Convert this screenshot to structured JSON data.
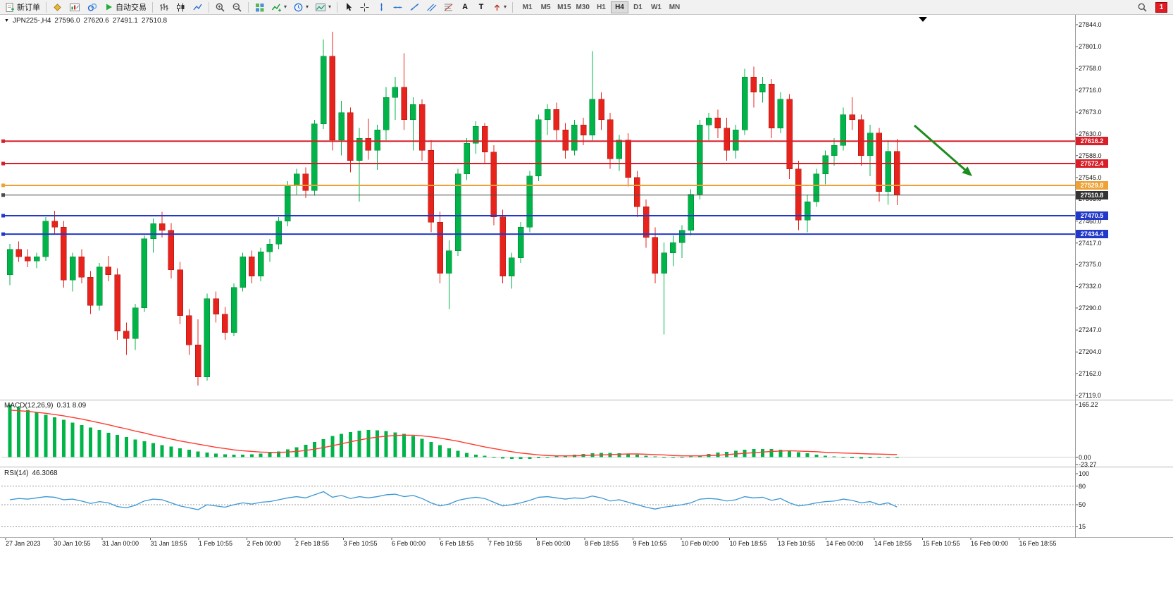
{
  "toolbar": {
    "new_order": "新订单",
    "auto_trading": "自动交易",
    "letters": {
      "text_tool": "A",
      "label_tool": "T"
    },
    "timeframes": [
      "M1",
      "M5",
      "M15",
      "M30",
      "H1",
      "H4",
      "D1",
      "W1",
      "MN"
    ],
    "active_timeframe": "H4",
    "notification_count": "1"
  },
  "chart": {
    "dropdown_marker": "▼",
    "symbol_period": "JPN225-,H4",
    "open": "27596.0",
    "high": "27620.6",
    "low": "27491.1",
    "close": "27510.8",
    "macd_label": "MACD(12,26,9)",
    "macd_values": "0.31 8.09",
    "rsi_label": "RSI(14)",
    "rsi_value": "46.3068"
  },
  "chart_data": [
    {
      "type": "candlestick",
      "symbol": "JPN225-",
      "timeframe": "H4",
      "ohlc_current": {
        "open": 27596.0,
        "high": 27620.6,
        "low": 27491.1,
        "close": 27510.8
      },
      "up_color": "#00b44a",
      "down_color": "#e8231c",
      "price_axis": {
        "min": 27119.0,
        "max": 27844.0,
        "ticks": [
          "27844.0",
          "27801.0",
          "27758.0",
          "27716.0",
          "27673.0",
          "27630.0",
          "27588.0",
          "27545.0",
          "27503.0",
          "27460.0",
          "27417.0",
          "27375.0",
          "27332.0",
          "27290.0",
          "27247.0",
          "27204.0",
          "27162.0",
          "27119.0"
        ]
      },
      "time_labels": [
        "27 Jan 2023",
        "30 Jan 10:55",
        "31 Jan 00:00",
        "31 Jan 18:55",
        "1 Feb 10:55",
        "2 Feb 00:00",
        "2 Feb 18:55",
        "3 Feb 10:55",
        "6 Feb 00:00",
        "6 Feb 18:55",
        "7 Feb 10:55",
        "8 Feb 00:00",
        "8 Feb 18:55",
        "9 Feb 10:55",
        "10 Feb 00:00",
        "10 Feb 18:55",
        "13 Feb 10:55",
        "14 Feb 00:00",
        "14 Feb 18:55",
        "15 Feb 10:55",
        "16 Feb 00:00",
        "16 Feb 18:55"
      ],
      "hlines": [
        {
          "price": 27616.2,
          "label": "27616.2",
          "color": "#d81e28",
          "width": 2
        },
        {
          "price": 27572.4,
          "label": "27572.4",
          "color": "#d81e28",
          "width": 2
        },
        {
          "price": 27529.8,
          "label": "27529.8",
          "color": "#eea236",
          "width": 2
        },
        {
          "price": 27510.8,
          "label": "27510.8",
          "color": "#4a4a4a",
          "width": 1,
          "badge": "#333333"
        },
        {
          "price": 27470.5,
          "label": "27470.5",
          "color": "#2238c8",
          "width": 2
        },
        {
          "price": 27434.4,
          "label": "27434.4",
          "color": "#2238c8",
          "width": 2
        }
      ],
      "annotation": {
        "type": "arrow-down-right",
        "color": "#1e8c1e"
      },
      "candles": [
        [
          27355,
          27415,
          27335,
          27405
        ],
        [
          27405,
          27420,
          27380,
          27390
        ],
        [
          27390,
          27405,
          27370,
          27382
        ],
        [
          27382,
          27398,
          27368,
          27390
        ],
        [
          27390,
          27468,
          27382,
          27460
        ],
        [
          27460,
          27480,
          27435,
          27448
        ],
        [
          27448,
          27460,
          27330,
          27345
        ],
        [
          27345,
          27398,
          27322,
          27390
        ],
        [
          27390,
          27405,
          27338,
          27350
        ],
        [
          27350,
          27362,
          27278,
          27295
        ],
        [
          27295,
          27378,
          27285,
          27370
        ],
        [
          27370,
          27392,
          27342,
          27355
        ],
        [
          27355,
          27368,
          27228,
          27245
        ],
        [
          27245,
          27262,
          27198,
          27230
        ],
        [
          27230,
          27298,
          27208,
          27290
        ],
        [
          27290,
          27432,
          27282,
          27425
        ],
        [
          27425,
          27465,
          27398,
          27455
        ],
        [
          27455,
          27478,
          27428,
          27442
        ],
        [
          27442,
          27456,
          27348,
          27365
        ],
        [
          27365,
          27380,
          27258,
          27275
        ],
        [
          27275,
          27288,
          27198,
          27218
        ],
        [
          27218,
          27268,
          27138,
          27155
        ],
        [
          27155,
          27318,
          27148,
          27308
        ],
        [
          27308,
          27322,
          27262,
          27278
        ],
        [
          27278,
          27292,
          27228,
          27242
        ],
        [
          27242,
          27338,
          27235,
          27330
        ],
        [
          27330,
          27398,
          27322,
          27390
        ],
        [
          27390,
          27402,
          27338,
          27352
        ],
        [
          27352,
          27408,
          27342,
          27400
        ],
        [
          27400,
          27425,
          27380,
          27415
        ],
        [
          27415,
          27468,
          27405,
          27460
        ],
        [
          27460,
          27538,
          27450,
          27530
        ],
        [
          27530,
          27562,
          27512,
          27552
        ],
        [
          27552,
          27565,
          27505,
          27520
        ],
        [
          27520,
          27658,
          27510,
          27650
        ],
        [
          27650,
          27815,
          27640,
          27782
        ],
        [
          27782,
          27830,
          27598,
          27618
        ],
        [
          27618,
          27695,
          27588,
          27672
        ],
        [
          27672,
          27682,
          27555,
          27578
        ],
        [
          27578,
          27642,
          27498,
          27622
        ],
        [
          27622,
          27660,
          27580,
          27598
        ],
        [
          27598,
          27648,
          27560,
          27638
        ],
        [
          27638,
          27722,
          27618,
          27702
        ],
        [
          27702,
          27742,
          27658,
          27722
        ],
        [
          27722,
          27788,
          27638,
          27658
        ],
        [
          27658,
          27702,
          27598,
          27688
        ],
        [
          27688,
          27698,
          27578,
          27598
        ],
        [
          27598,
          27618,
          27438,
          27458
        ],
        [
          27458,
          27478,
          27338,
          27358
        ],
        [
          27358,
          27422,
          27288,
          27402
        ],
        [
          27402,
          27562,
          27392,
          27552
        ],
        [
          27552,
          27622,
          27540,
          27612
        ],
        [
          27612,
          27655,
          27592,
          27645
        ],
        [
          27645,
          27652,
          27572,
          27595
        ],
        [
          27595,
          27608,
          27452,
          27468
        ],
        [
          27468,
          27482,
          27338,
          27352
        ],
        [
          27352,
          27398,
          27328,
          27388
        ],
        [
          27388,
          27458,
          27378,
          27448
        ],
        [
          27448,
          27558,
          27438,
          27548
        ],
        [
          27548,
          27668,
          27538,
          27658
        ],
        [
          27658,
          27688,
          27628,
          27678
        ],
        [
          27678,
          27692,
          27618,
          27638
        ],
        [
          27638,
          27652,
          27582,
          27598
        ],
        [
          27598,
          27658,
          27588,
          27648
        ],
        [
          27648,
          27662,
          27608,
          27628
        ],
        [
          27628,
          27792,
          27618,
          27698
        ],
        [
          27698,
          27712,
          27638,
          27658
        ],
        [
          27658,
          27672,
          27562,
          27582
        ],
        [
          27582,
          27628,
          27558,
          27618
        ],
        [
          27618,
          27632,
          27528,
          27545
        ],
        [
          27545,
          27558,
          27468,
          27488
        ],
        [
          27488,
          27502,
          27408,
          27428
        ],
        [
          27428,
          27448,
          27338,
          27358
        ],
        [
          27358,
          27418,
          27238,
          27398
        ],
        [
          27398,
          27432,
          27372,
          27418
        ],
        [
          27418,
          27452,
          27388,
          27442
        ],
        [
          27442,
          27522,
          27432,
          27512
        ],
        [
          27512,
          27658,
          27502,
          27648
        ],
        [
          27648,
          27672,
          27618,
          27662
        ],
        [
          27662,
          27678,
          27622,
          27642
        ],
        [
          27642,
          27662,
          27578,
          27598
        ],
        [
          27598,
          27648,
          27582,
          27638
        ],
        [
          27638,
          27758,
          27628,
          27742
        ],
        [
          27742,
          27762,
          27682,
          27712
        ],
        [
          27712,
          27742,
          27692,
          27728
        ],
        [
          27728,
          27738,
          27622,
          27642
        ],
        [
          27642,
          27712,
          27632,
          27698
        ],
        [
          27698,
          27708,
          27542,
          27562
        ],
        [
          27562,
          27578,
          27442,
          27462
        ],
        [
          27462,
          27512,
          27438,
          27498
        ],
        [
          27498,
          27562,
          27488,
          27552
        ],
        [
          27552,
          27598,
          27532,
          27588
        ],
        [
          27588,
          27622,
          27568,
          27608
        ],
        [
          27608,
          27682,
          27598,
          27668
        ],
        [
          27668,
          27702,
          27638,
          27658
        ],
        [
          27658,
          27668,
          27568,
          27588
        ],
        [
          27588,
          27648,
          27548,
          27632
        ],
        [
          27632,
          27642,
          27498,
          27518
        ],
        [
          27518,
          27618,
          27492,
          27596
        ],
        [
          27596,
          27620.6,
          27491.1,
          27510.8
        ]
      ]
    },
    {
      "type": "macd",
      "label": "MACD(12,26,9)",
      "main_value": 0.31,
      "signal_value": 8.09,
      "ymax": 165.22,
      "ymin": -23.27,
      "axis_ticks": [
        "165.22",
        "0.00",
        "-23.27"
      ],
      "histogram_color": "#00b44a",
      "signal_color": "#ff3a2e",
      "histogram": [
        165,
        157,
        149,
        141,
        133,
        125,
        117,
        109,
        101,
        93,
        85,
        77,
        70,
        63,
        56,
        50,
        44,
        38,
        33,
        28,
        23,
        18,
        14,
        11,
        9,
        8,
        8,
        9,
        11,
        14,
        18,
        24,
        31,
        39,
        48,
        57,
        66,
        73,
        79,
        83,
        85,
        84,
        82,
        78,
        73,
        66,
        58,
        48,
        38,
        28,
        20,
        13,
        8,
        4,
        0,
        -4,
        -6,
        -6,
        -5,
        -3,
        0,
        3,
        6,
        8,
        10,
        12,
        13,
        13,
        12,
        10,
        8,
        5,
        2,
        -1,
        -2,
        -1,
        2,
        6,
        10,
        14,
        17,
        20,
        23,
        25,
        26,
        25,
        23,
        20,
        16,
        12,
        8,
        5,
        2,
        -1,
        -3,
        -4,
        -3,
        -2,
        -1,
        0.31
      ],
      "signal": [
        148,
        146,
        144,
        141,
        138,
        134,
        130,
        125,
        120,
        114,
        108,
        102,
        95,
        89,
        82,
        76,
        69,
        63,
        57,
        51,
        46,
        41,
        36,
        31,
        27,
        23,
        20,
        18,
        16,
        15,
        15,
        16,
        18,
        21,
        25,
        30,
        36,
        42,
        48,
        54,
        59,
        63,
        66,
        68,
        69,
        69,
        67,
        64,
        60,
        55,
        50,
        44,
        38,
        32,
        27,
        22,
        17,
        13,
        10,
        7,
        5,
        4,
        4,
        4,
        5,
        6,
        7,
        8,
        9,
        10,
        10,
        9,
        8,
        7,
        5,
        4,
        4,
        4,
        5,
        6,
        8,
        10,
        12,
        14,
        16,
        18,
        19,
        20,
        19,
        18,
        17,
        15,
        14,
        13,
        12,
        11,
        10,
        9.5,
        8.8,
        8.09
      ]
    },
    {
      "type": "rsi",
      "label": "RSI(14)",
      "value": 46.3068,
      "range": [
        0,
        100
      ],
      "levels": [
        80,
        50,
        15
      ],
      "axis_ticks": [
        "100",
        "80",
        "50",
        "15"
      ],
      "line_color": "#3b97d3",
      "values": [
        58,
        60,
        59,
        61,
        63,
        62,
        58,
        59,
        56,
        52,
        55,
        53,
        47,
        45,
        49,
        56,
        59,
        58,
        53,
        48,
        45,
        42,
        50,
        48,
        46,
        50,
        53,
        51,
        54,
        55,
        58,
        61,
        63,
        61,
        66,
        71,
        62,
        65,
        60,
        63,
        61,
        63,
        66,
        67,
        63,
        65,
        60,
        53,
        48,
        51,
        57,
        60,
        62,
        60,
        54,
        48,
        50,
        53,
        57,
        62,
        63,
        61,
        59,
        61,
        60,
        64,
        61,
        56,
        58,
        54,
        50,
        46,
        43,
        46,
        48,
        50,
        53,
        59,
        60,
        59,
        56,
        58,
        63,
        61,
        62,
        57,
        60,
        53,
        48,
        50,
        53,
        55,
        56,
        59,
        57,
        53,
        55,
        50,
        53,
        46.31
      ]
    }
  ]
}
